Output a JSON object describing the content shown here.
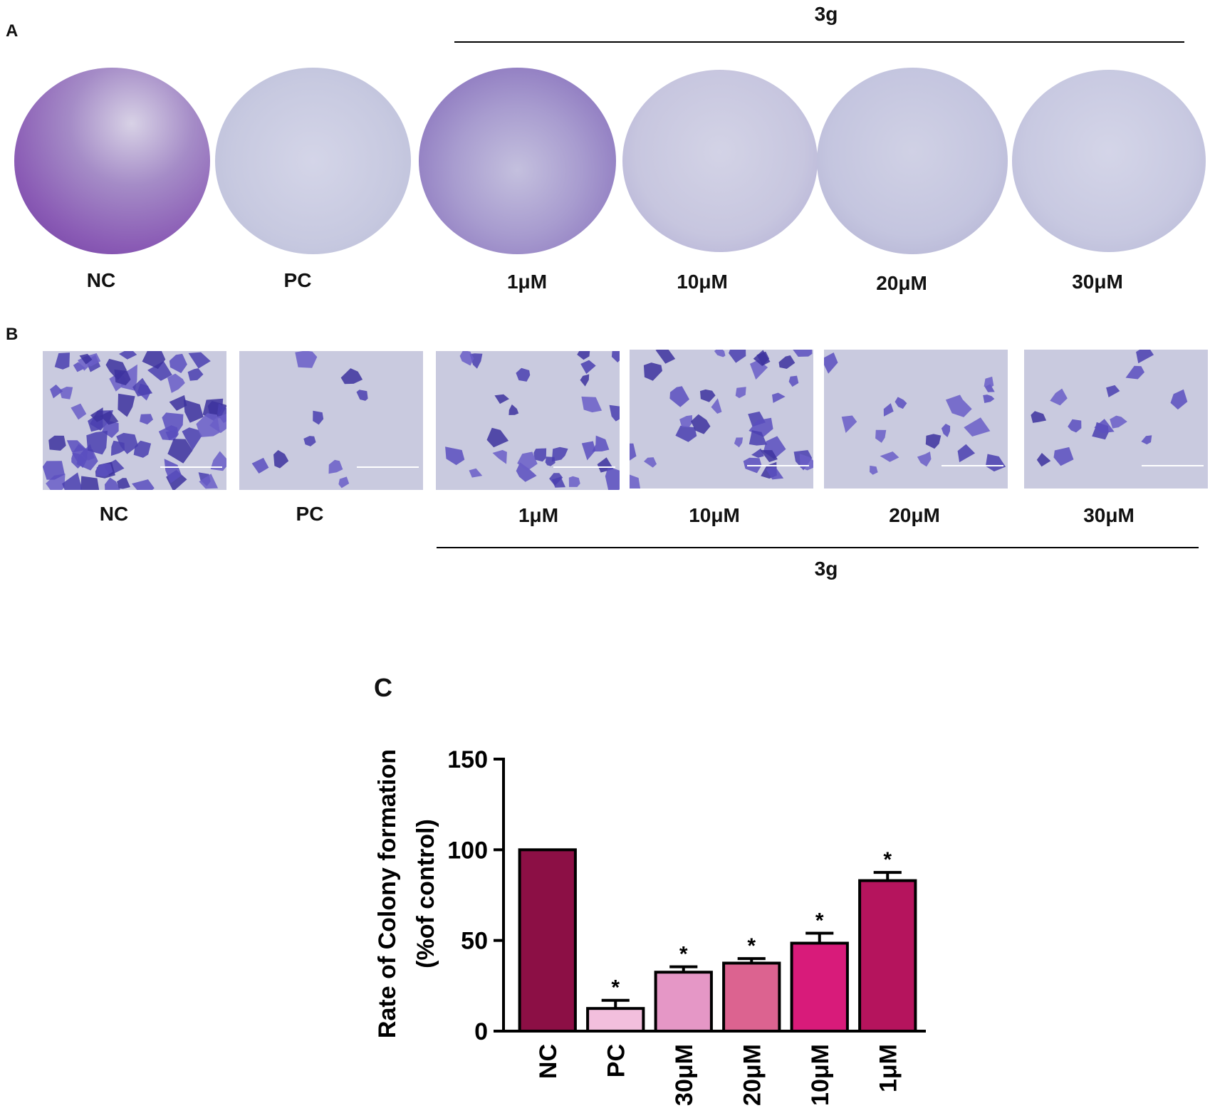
{
  "panelA": {
    "letter": "A",
    "group_label": "3g",
    "dishes": [
      "NC",
      "PC",
      "1μM",
      "10μM",
      "20μM",
      "30μM"
    ],
    "stain_levels": [
      0.95,
      0.05,
      0.75,
      0.18,
      0.12,
      0.1
    ]
  },
  "panelB": {
    "letter": "B",
    "group_label": "3g",
    "images": [
      "NC",
      "PC",
      "1μM",
      "10μM",
      "20μM",
      "30μM"
    ],
    "cell_density": [
      1.0,
      0.05,
      0.35,
      0.45,
      0.18,
      0.12
    ]
  },
  "panelC": {
    "letter": "C"
  },
  "chart_data": {
    "type": "bar",
    "title": "",
    "xlabel": "",
    "ylabel": "Rate of Colony formation (%of control)",
    "ylabel_lines": [
      "Rate of Colony formation",
      "(%of control)"
    ],
    "ylim": [
      0,
      150
    ],
    "yticks": [
      "0",
      "50",
      "100",
      "150"
    ],
    "categories": [
      "NC",
      "PC",
      "30μM",
      "20μM",
      "10μM",
      "1μM"
    ],
    "values": [
      100,
      12.5,
      32.5,
      37.5,
      48.5,
      83
    ],
    "errors": [
      0,
      4.5,
      3,
      2.5,
      5.5,
      4.5
    ],
    "significance": [
      "",
      "*",
      "*",
      "*",
      "*",
      "*"
    ],
    "colors": [
      "#8c0f45",
      "#f2bfdd",
      "#e597c6",
      "#dc6390",
      "#d81b7a",
      "#b5145d"
    ],
    "grid": false
  }
}
